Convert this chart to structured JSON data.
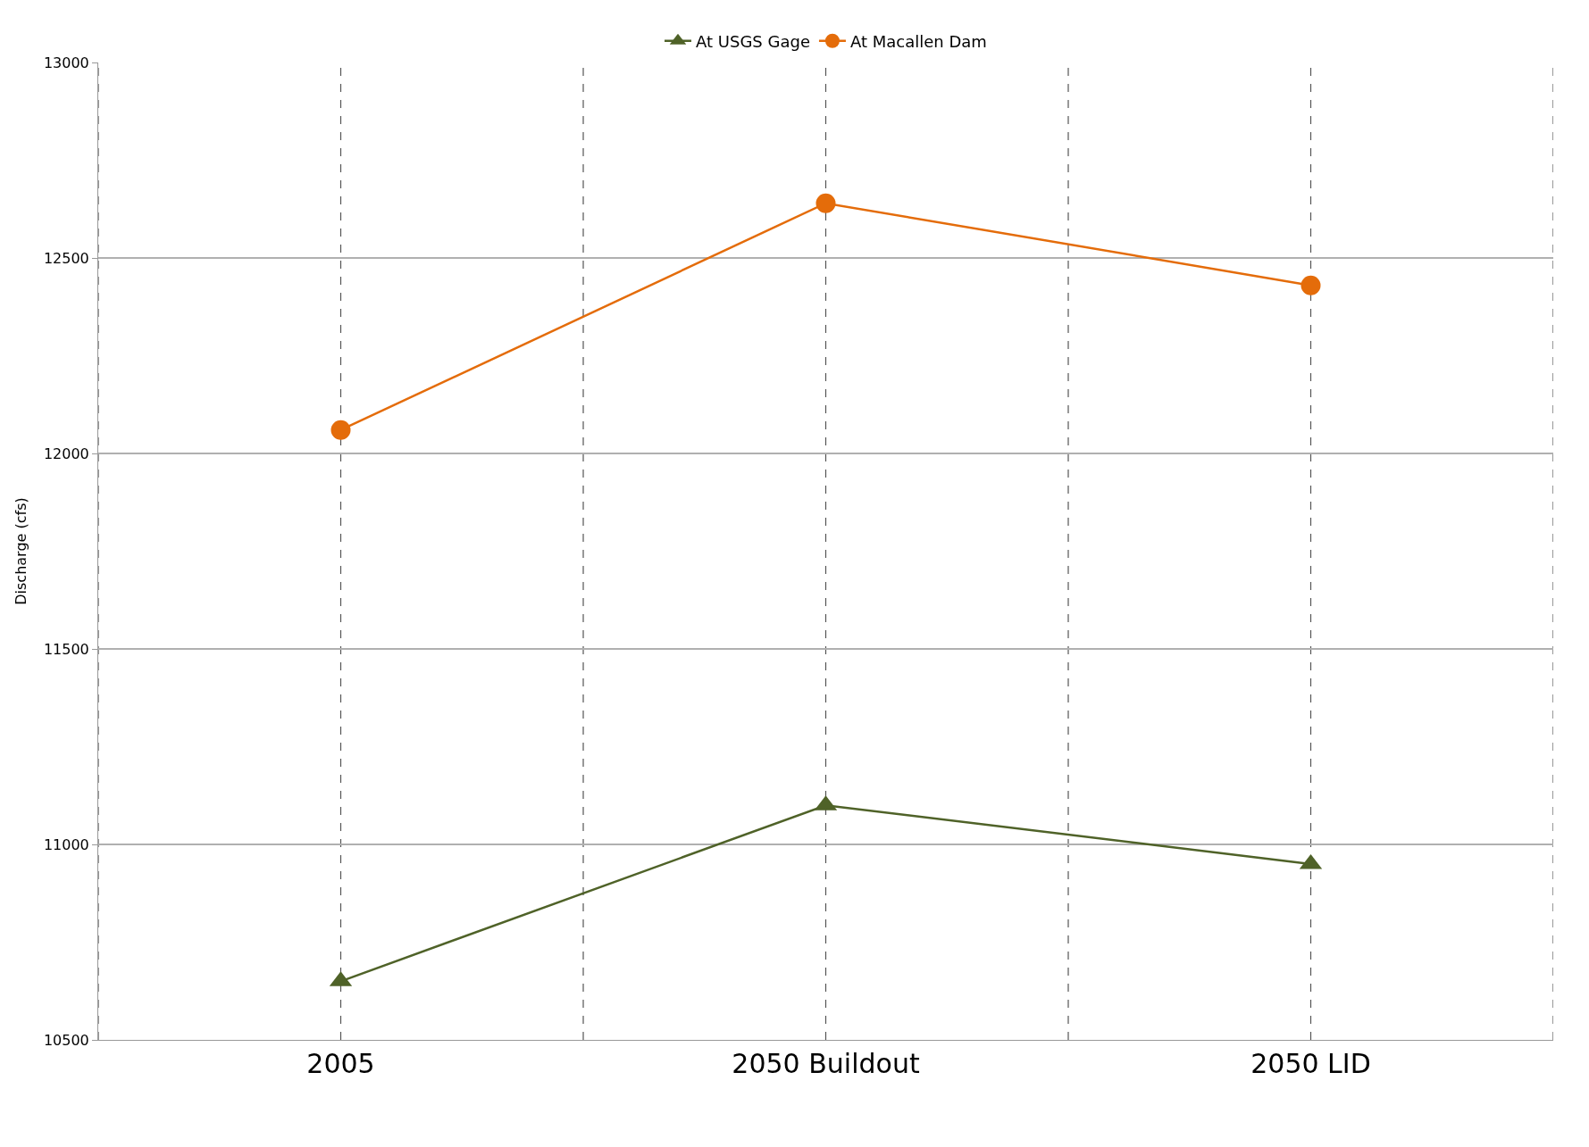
{
  "chart_data": {
    "type": "line",
    "ylabel": "Discharge (cfs)",
    "categories": [
      "2005",
      "2050 Buildout",
      "2050 LID"
    ],
    "series": [
      {
        "name": "At USGS Gage",
        "color": "#4f6228",
        "marker": "triangle",
        "values": [
          10650,
          11100,
          10950
        ]
      },
      {
        "name": "At Macallen Dam",
        "color": "#e46c0a",
        "marker": "circle",
        "values": [
          12060,
          12640,
          12430
        ]
      }
    ],
    "ylim": [
      10500,
      13000
    ],
    "yticks": [
      10500,
      11000,
      11500,
      12000,
      12500,
      13000
    ],
    "grid": true,
    "legend": "top",
    "line_style": "solid"
  }
}
